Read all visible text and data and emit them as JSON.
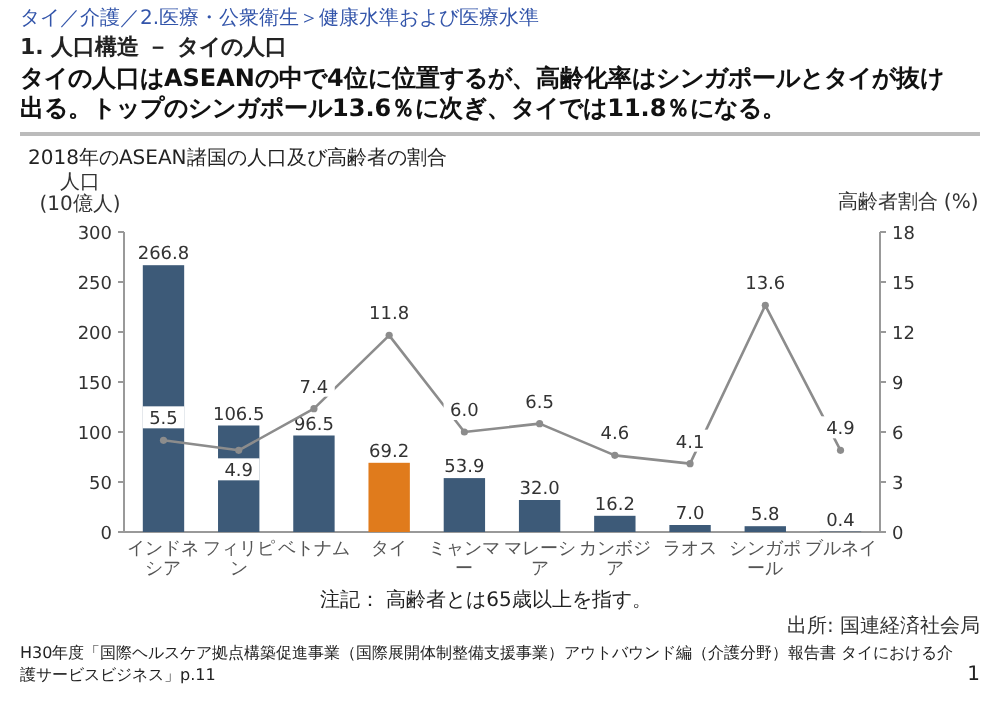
{
  "chart_data": {
    "type": "bar",
    "title": "タイの人口はASEANの中で4位に位置するが、高齢化率はシンガポールとタイが抜け出る。トップのシンガポール13.6％に次ぎ、タイでは11.8％になる。",
    "subtitle": "2018年のASEAN諸国の人口及び高齢者の割合",
    "ylabel": "人口\n(10億人)",
    "y2label": "高齢者割合 (%)",
    "categories": [
      "インドネシア",
      "フィリピン",
      "ベトナム",
      "タイ",
      "ミャンマー",
      "マレーシア",
      "カンボジア",
      "ラオス",
      "シンガポール",
      "ブルネイ"
    ],
    "series": [
      {
        "values": [
          266.8,
          106.5,
          96.5,
          69.2,
          53.9,
          32.0,
          16.2,
          7.0,
          5.8,
          0.4
        ],
        "colors": [
          "#3d5a78",
          "#3d5a78",
          "#3d5a78",
          "#e07b1c",
          "#3d5a78",
          "#3d5a78",
          "#3d5a78",
          "#3d5a78",
          "#3d5a78",
          "#3d5a78"
        ],
        "value_labels": [
          "266.8",
          "106.5",
          "96.5",
          "69.2",
          "53.9",
          "32.0",
          "16.2",
          "7.0",
          "5.8",
          "0.4"
        ]
      },
      {
        "type": "line",
        "axis": "y2",
        "color": "#8c8c8c",
        "values": [
          5.5,
          4.9,
          7.4,
          11.8,
          6.0,
          6.5,
          4.6,
          4.1,
          13.6,
          4.9
        ],
        "value_labels": [
          "5.5",
          "4.9",
          "7.4",
          "11.8",
          "6.0",
          "6.5",
          "4.6",
          "4.1",
          "13.6",
          "4.9"
        ]
      }
    ],
    "ylim": [
      0,
      300
    ],
    "yticks": [
      0,
      50,
      100,
      150,
      200,
      250,
      300
    ],
    "y2lim": [
      0,
      18
    ],
    "y2ticks": [
      0,
      3,
      6,
      9,
      12,
      15,
      18
    ],
    "marker": "circle",
    "line_style": "solid",
    "grid": false,
    "annotations": [
      "タイ／介護／2.医療・公衆衛生＞健康水準および医療水準",
      "1. 人口構造 － タイの人口",
      "注記： 高齢者とは65歳以上を指す。",
      "出所: 国連経済社会局",
      "H30年度「国際ヘルスケア拠点構築促進事業（国際展開体制整備支援事業）アウトバウンド編（介護分野）報告書 タイにおける介護サービスビジネス」p.11",
      "1"
    ]
  }
}
